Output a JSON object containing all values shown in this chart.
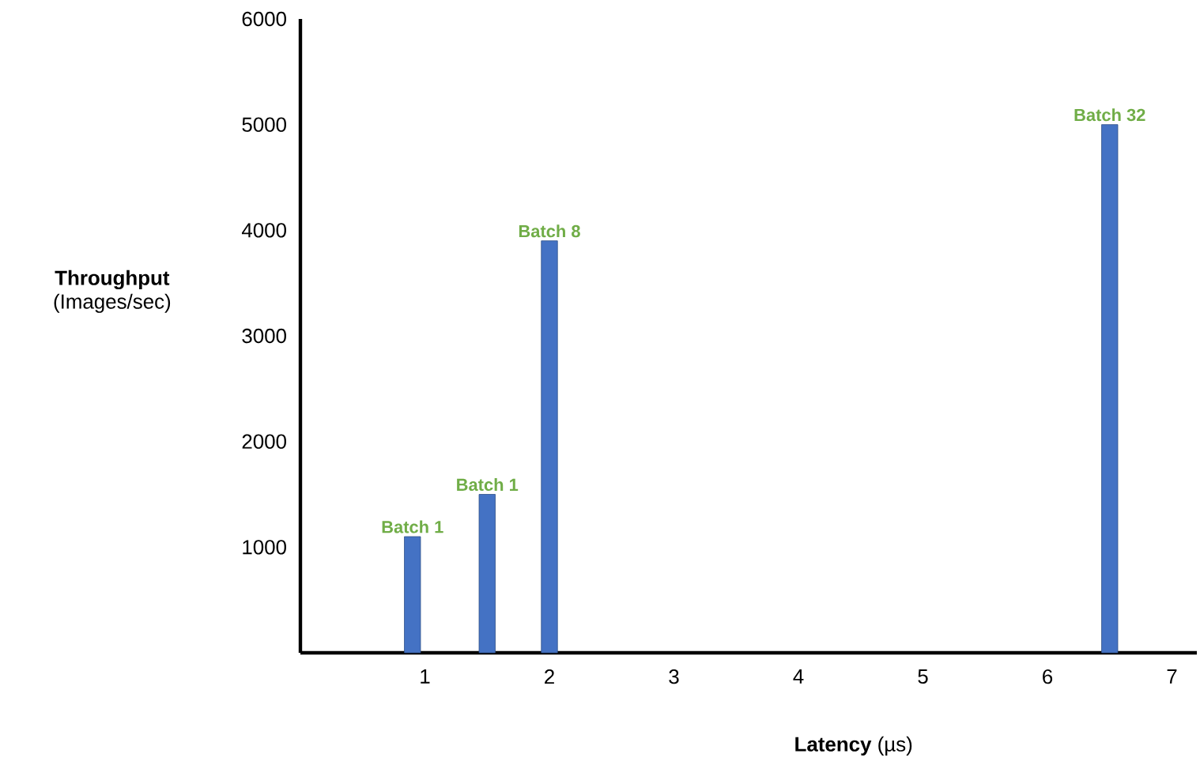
{
  "chart_data": {
    "type": "bar",
    "x": [
      0.9,
      1.5,
      2,
      6.5
    ],
    "values": [
      1100,
      1500,
      3900,
      5000
    ],
    "color": "#4472c4",
    "xlabel": "**Latency** (µs)",
    "ylabel": "**Throughput** (Images/sec)",
    "xlim": [
      0,
      7.2
    ],
    "xticks": [
      1,
      2,
      3,
      4,
      5,
      6,
      7
    ],
    "ylim": [
      0,
      6000
    ],
    "yticks": [
      1000,
      2000,
      3000,
      4000,
      5000,
      6000
    ],
    "annotations": [
      {
        "text": "Batch 1",
        "x": 0.9,
        "y": 1100
      },
      {
        "text": "Batch 1",
        "x": 1.5,
        "y": 1500
      },
      {
        "text": "Batch 8",
        "x": 2,
        "y": 3900
      },
      {
        "text": "Batch 32",
        "x": 6.5,
        "y": 5000
      }
    ],
    "grid": false
  }
}
